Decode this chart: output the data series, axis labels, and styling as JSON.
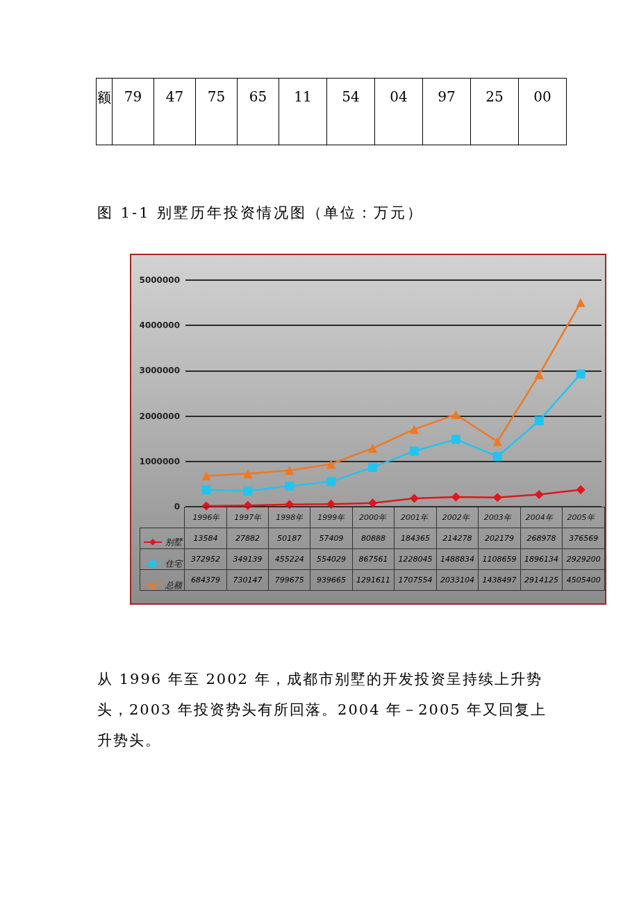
{
  "chart_data": {
    "type": "line",
    "title": "图 1-1 别墅历年投资情况图（单位：万元）",
    "categories": [
      "1996年",
      "1997年",
      "1998年",
      "1999年",
      "2000年",
      "2001年",
      "2002年",
      "2003年",
      "2004年",
      "2005年"
    ],
    "series": [
      {
        "name": "别墅",
        "color": "#e3141c",
        "marker": "diamond",
        "values": [
          13584,
          27882,
          50187,
          57409,
          80888,
          184365,
          214278,
          202179,
          268978,
          376569
        ]
      },
      {
        "name": "住宅",
        "color": "#22c3ef",
        "marker": "square",
        "values": [
          372952,
          349139,
          455224,
          554029,
          867561,
          1228045,
          1488834,
          1108659,
          1896134,
          2929200
        ]
      },
      {
        "name": "总额",
        "color": "#f07822",
        "marker": "triangle",
        "values": [
          684379,
          730147,
          799675,
          939665,
          1291611,
          1707554,
          2033104,
          1438497,
          2914125,
          4505400
        ]
      }
    ],
    "ylim": [
      0,
      5000000
    ],
    "yticks": [
      0,
      1000000,
      2000000,
      3000000,
      4000000,
      5000000
    ],
    "grid": "y",
    "legend": "bottom left",
    "data_labels": true,
    "annotations": [
      "额",
      "79",
      "47",
      "75",
      "65",
      "11",
      "54",
      "04",
      "97",
      "25",
      "00",
      "从 1996 年至 2002 年，成都市别墅的开发投资呈持续上升势头，2003 年投资势头有所回落。2004 年－2005 年又回复上升势头。"
    ]
  }
}
